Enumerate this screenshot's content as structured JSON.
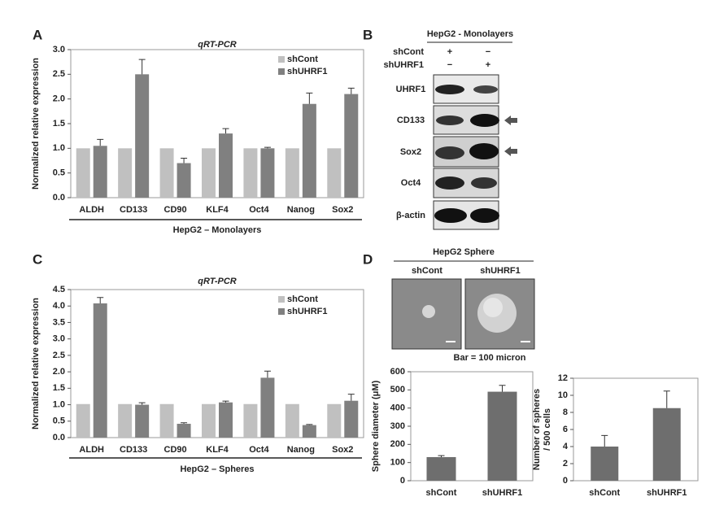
{
  "panel_labels": [
    "A",
    "B",
    "C",
    "D"
  ],
  "chart_data": [
    {
      "type": "bar",
      "title": "qRT-PCR",
      "ylabel": "Normalized relative expression",
      "xlabel": "HepG2 – Monolayers",
      "categories": [
        "ALDH",
        "CD133",
        "CD90",
        "KLF4",
        "Oct4",
        "Nanog",
        "Sox2"
      ],
      "series": [
        {
          "name": "shCont",
          "color": "#c0c0c0",
          "values": [
            1.0,
            1.0,
            1.0,
            1.0,
            1.0,
            1.0,
            1.0
          ]
        },
        {
          "name": "shUHRF1",
          "color": "#808080",
          "values": [
            1.05,
            2.5,
            0.7,
            1.3,
            1.0,
            1.9,
            2.1
          ],
          "errors": [
            0.13,
            0.3,
            0.1,
            0.1,
            0.02,
            0.22,
            0.12
          ]
        }
      ],
      "ylim": [
        0,
        3
      ],
      "yticks": [
        {
          "value": 0,
          "label": "0.0"
        },
        {
          "value": 0.5,
          "label": "0.5"
        },
        {
          "value": 1,
          "label": "1.0"
        },
        {
          "value": 1.5,
          "label": "1.5"
        },
        {
          "value": 2,
          "label": "2.0"
        },
        {
          "value": 2.5,
          "label": "2.5"
        },
        {
          "value": 3,
          "label": "3.0"
        }
      ],
      "legend": "upper right"
    },
    {
      "type": "bar",
      "title": "qRT-PCR",
      "ylabel": "Normalized relative expression",
      "xlabel": "HepG2 – Spheres",
      "categories": [
        "ALDH",
        "CD133",
        "CD90",
        "KLF4",
        "Oct4",
        "Nanog",
        "Sox2"
      ],
      "series": [
        {
          "name": "shCont",
          "color": "#c0c0c0",
          "values": [
            1.02,
            1.02,
            1.02,
            1.02,
            1.02,
            1.02,
            1.02
          ]
        },
        {
          "name": "shUHRF1",
          "color": "#808080",
          "values": [
            4.08,
            1.0,
            0.42,
            1.07,
            1.82,
            0.38,
            1.12
          ],
          "errors": [
            0.18,
            0.06,
            0.03,
            0.04,
            0.2,
            0.02,
            0.2
          ]
        }
      ],
      "ylim": [
        0,
        4.5
      ],
      "yticks": [
        {
          "value": 0,
          "label": "0.0"
        },
        {
          "value": 0.5,
          "label": "0.5"
        },
        {
          "value": 1,
          "label": "1.0"
        },
        {
          "value": 1.5,
          "label": "1.5"
        },
        {
          "value": 2,
          "label": "2.0"
        },
        {
          "value": 2.5,
          "label": "2.5"
        },
        {
          "value": 3,
          "label": "3.0"
        },
        {
          "value": 3.5,
          "label": "3.5"
        },
        {
          "value": 4,
          "label": "4.0"
        },
        {
          "value": 4.5,
          "label": "4.5"
        }
      ],
      "legend": "upper right"
    },
    {
      "type": "bar",
      "ylabel": "Sphere diameter (μM)",
      "categories": [
        "shCont",
        "shUHRF1"
      ],
      "values": [
        130,
        490
      ],
      "errors": [
        8,
        35
      ],
      "color": "#6e6e6e",
      "ylim": [
        0,
        600
      ],
      "yticks": [
        0,
        100,
        200,
        300,
        400,
        500,
        600
      ]
    },
    {
      "type": "bar",
      "ylabel": [
        "Number of spheres",
        "/ 500 cells"
      ],
      "categories": [
        "shCont",
        "shUHRF1"
      ],
      "values": [
        4,
        8.5
      ],
      "errors": [
        1.3,
        2
      ],
      "color": "#6e6e6e",
      "ylim": [
        0,
        12
      ],
      "yticks": [
        0,
        2,
        4,
        6,
        8,
        10,
        12
      ]
    }
  ],
  "blot": {
    "title": "HepG2 - Monolayers",
    "conditions": [
      {
        "label": "shCont",
        "lanes": [
          "+",
          "−"
        ]
      },
      {
        "label": "shUHRF1",
        "lanes": [
          "−",
          "+"
        ]
      }
    ],
    "bands": [
      "UHRF1",
      "CD133",
      "Sox2",
      "Oct4",
      "β-actin"
    ]
  },
  "sphere": {
    "title": "HepG2 Sphere",
    "samples": [
      "shCont",
      "shUHRF1"
    ],
    "scale": "Bar = 100 micron"
  }
}
